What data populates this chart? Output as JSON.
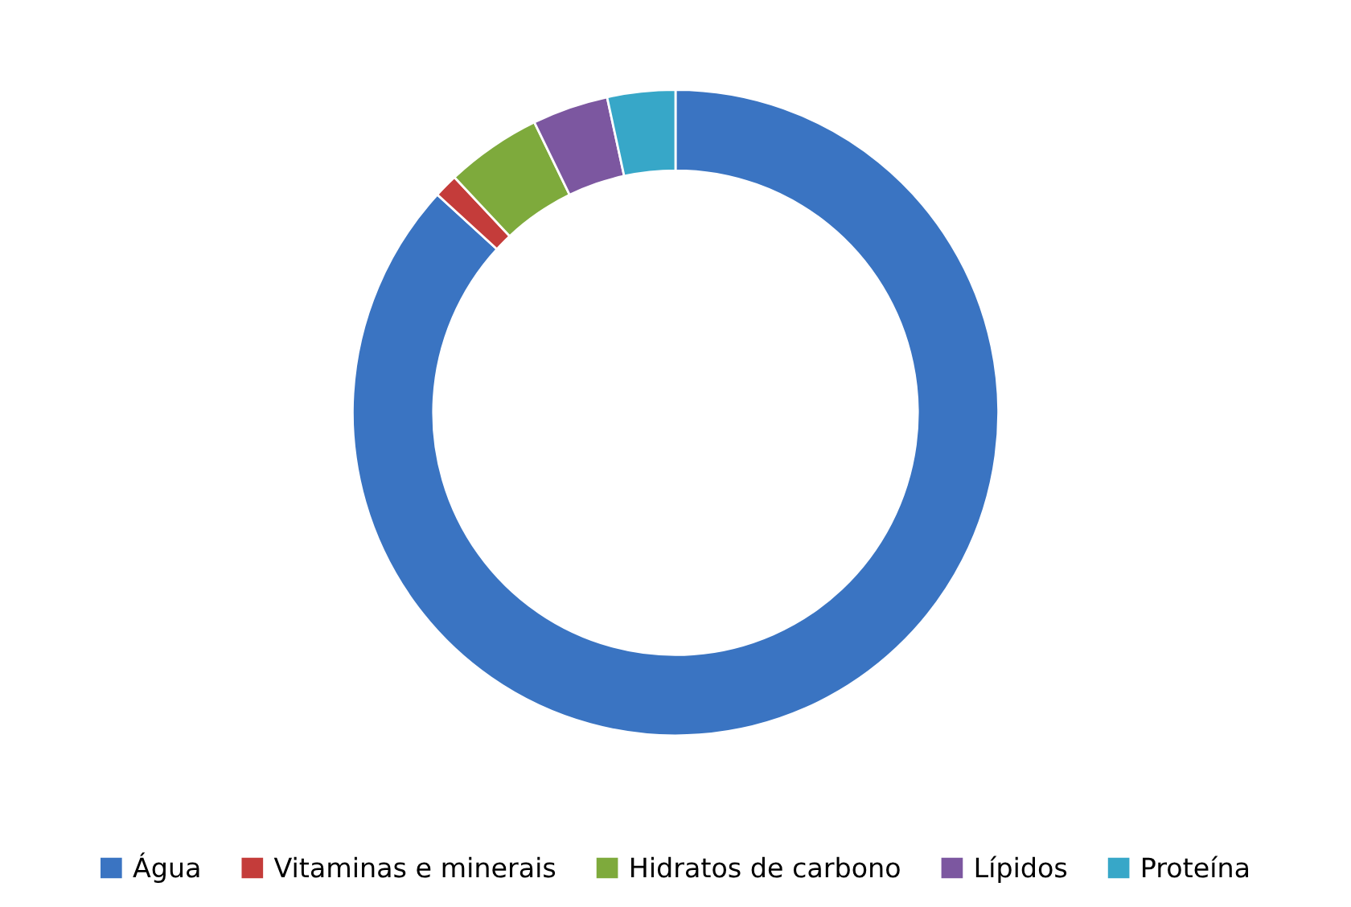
{
  "chart_data": {
    "type": "donut",
    "categories": [
      "Água",
      "Vitaminas e minerais",
      "Hidratos de carbono",
      "Lípidos",
      "Proteína"
    ],
    "values": [
      86.8,
      1.2,
      4.8,
      3.8,
      3.4
    ],
    "colors": [
      "#3a74c2",
      "#c43c3a",
      "#7eaa3c",
      "#7c57a0",
      "#37a7c8"
    ],
    "legend": "bottom"
  }
}
